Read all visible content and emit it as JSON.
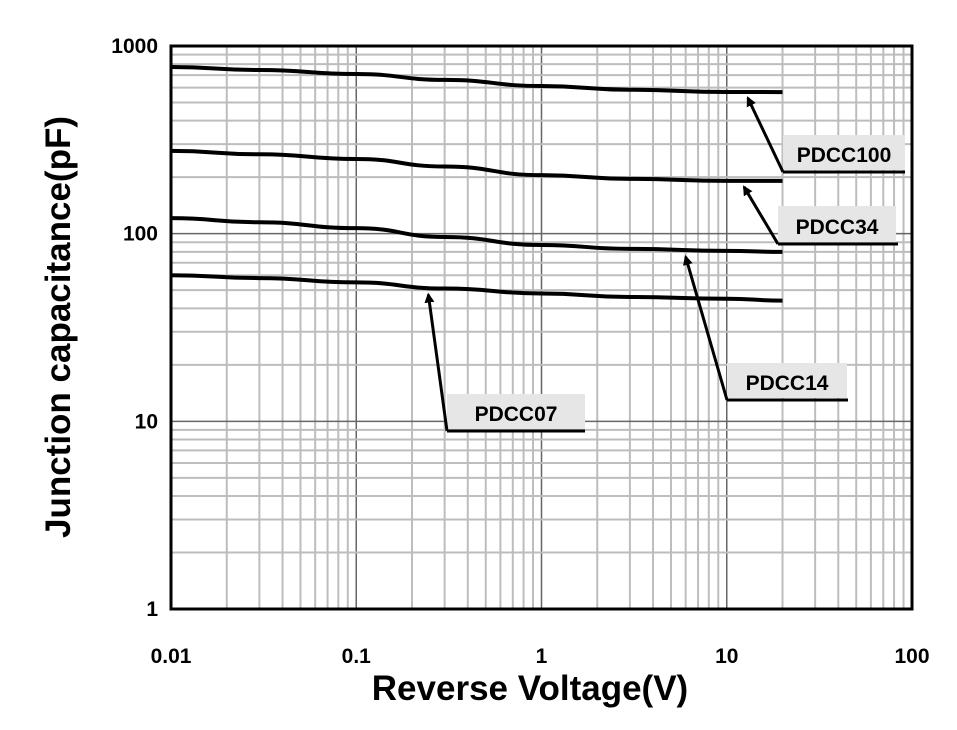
{
  "chart_data": {
    "type": "line",
    "title": "",
    "xlabel": "Reverse Voltage(V)",
    "ylabel": "Junction capacitance(pF)",
    "xscale": "log",
    "yscale": "log",
    "xlim": [
      0.01,
      100
    ],
    "ylim": [
      1,
      1000
    ],
    "xticks": [
      "0.01",
      "0.1",
      "1",
      "10",
      "100"
    ],
    "yticks": [
      "1",
      "10",
      "100",
      "1000"
    ],
    "grid": true,
    "series": [
      {
        "name": "PDCC100",
        "x": [
          0.01,
          0.03,
          0.1,
          0.3,
          1,
          3,
          10,
          20
        ],
        "y": [
          773,
          745,
          709,
          660,
          612,
          585,
          569,
          568
        ],
        "arrow_to": [
          13,
          569
        ]
      },
      {
        "name": "PDCC34",
        "x": [
          0.01,
          0.03,
          0.1,
          0.3,
          1,
          3,
          10,
          20
        ],
        "y": [
          276,
          265,
          250,
          228,
          205,
          196,
          191,
          191
        ],
        "arrow_to": [
          12.4,
          191
        ]
      },
      {
        "name": "PDCC14",
        "x": [
          0.01,
          0.03,
          0.1,
          0.3,
          1,
          3,
          10,
          20
        ],
        "y": [
          121,
          115,
          107,
          96,
          87,
          83,
          81,
          80
        ],
        "arrow_to": [
          6.0,
          81
        ]
      },
      {
        "name": "PDCC07",
        "x": [
          0.01,
          0.03,
          0.1,
          0.3,
          1,
          3,
          10,
          20
        ],
        "y": [
          60,
          58,
          55,
          51,
          48,
          46,
          45,
          44
        ],
        "arrow_to": [
          0.245,
          51
        ]
      }
    ]
  }
}
